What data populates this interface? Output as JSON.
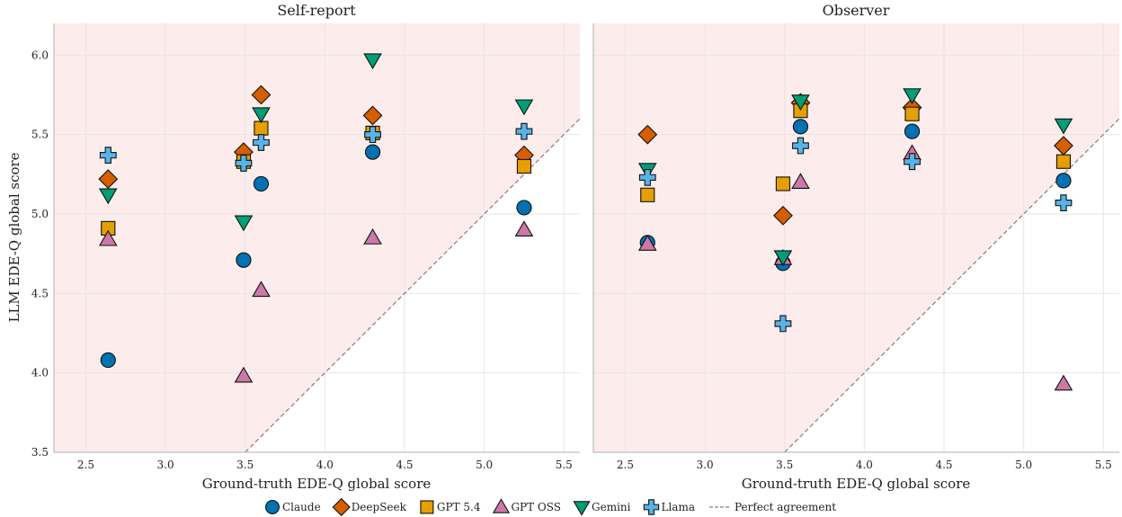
{
  "chart_data": [
    {
      "type": "scatter",
      "title": "Self-report",
      "xlabel": "Ground-truth EDE-Q global score",
      "ylabel": "LLM EDE-Q global score",
      "xlim": [
        2.3,
        5.6
      ],
      "ylim": [
        3.5,
        6.2
      ],
      "xticks": [
        "2.5",
        "3.0",
        "3.5",
        "4.0",
        "4.5",
        "5.0",
        "5.5"
      ],
      "yticks": [
        "3.5",
        "4.0",
        "4.5",
        "5.0",
        "5.5",
        "6.0"
      ],
      "grid": true,
      "shaded_region": "above perfect-agreement line",
      "series": [
        {
          "name": "Claude",
          "points": [
            [
              2.64,
              4.08
            ],
            [
              3.49,
              4.71
            ],
            [
              3.6,
              5.19
            ],
            [
              4.3,
              5.39
            ],
            [
              5.25,
              5.04
            ]
          ]
        },
        {
          "name": "DeepSeek",
          "points": [
            [
              2.64,
              5.22
            ],
            [
              3.49,
              5.39
            ],
            [
              3.6,
              5.75
            ],
            [
              4.3,
              5.62
            ],
            [
              5.25,
              5.37
            ]
          ]
        },
        {
          "name": "GPT 5.4",
          "points": [
            [
              2.64,
              4.91
            ],
            [
              3.49,
              5.33
            ],
            [
              3.6,
              5.54
            ],
            [
              4.3,
              5.51
            ],
            [
              5.25,
              5.3
            ]
          ]
        },
        {
          "name": "GPT OSS",
          "points": [
            [
              2.64,
              4.84
            ],
            [
              3.49,
              3.98
            ],
            [
              3.6,
              4.52
            ],
            [
              4.3,
              4.85
            ],
            [
              5.25,
              4.9
            ]
          ]
        },
        {
          "name": "Gemini",
          "points": [
            [
              2.64,
              5.12
            ],
            [
              3.49,
              4.95
            ],
            [
              3.6,
              5.63
            ],
            [
              4.3,
              5.97
            ],
            [
              5.25,
              5.68
            ]
          ]
        },
        {
          "name": "Llama",
          "points": [
            [
              2.64,
              5.37
            ],
            [
              3.49,
              5.32
            ],
            [
              3.6,
              5.45
            ],
            [
              4.3,
              5.5
            ],
            [
              5.25,
              5.52
            ]
          ]
        }
      ]
    },
    {
      "type": "scatter",
      "title": "Observer",
      "xlabel": "Ground-truth EDE-Q global score",
      "ylabel": "",
      "xlim": [
        2.3,
        5.6
      ],
      "ylim": [
        3.5,
        6.2
      ],
      "xticks": [
        "2.5",
        "3.0",
        "3.5",
        "4.0",
        "4.5",
        "5.0",
        "5.5"
      ],
      "yticks": [],
      "grid": true,
      "shaded_region": "above perfect-agreement line",
      "series": [
        {
          "name": "Claude",
          "points": [
            [
              2.64,
              4.82
            ],
            [
              3.49,
              4.69
            ],
            [
              3.6,
              5.55
            ],
            [
              4.3,
              5.52
            ],
            [
              5.25,
              5.21
            ]
          ]
        },
        {
          "name": "DeepSeek",
          "points": [
            [
              2.64,
              5.5
            ],
            [
              3.49,
              4.99
            ],
            [
              3.6,
              5.7
            ],
            [
              4.3,
              5.67
            ],
            [
              5.25,
              5.43
            ]
          ]
        },
        {
          "name": "GPT 5.4",
          "points": [
            [
              2.64,
              5.12
            ],
            [
              3.49,
              5.19
            ],
            [
              3.6,
              5.65
            ],
            [
              4.3,
              5.63
            ],
            [
              5.25,
              5.33
            ]
          ]
        },
        {
          "name": "GPT OSS",
          "points": [
            [
              2.64,
              4.81
            ],
            [
              3.49,
              4.72
            ],
            [
              3.6,
              5.2
            ],
            [
              4.3,
              5.38
            ],
            [
              5.25,
              3.93
            ]
          ]
        },
        {
          "name": "Gemini",
          "points": [
            [
              2.64,
              5.28
            ],
            [
              3.49,
              4.73
            ],
            [
              3.6,
              5.71
            ],
            [
              4.3,
              5.75
            ],
            [
              5.25,
              5.56
            ]
          ]
        },
        {
          "name": "Llama",
          "points": [
            [
              2.64,
              5.23
            ],
            [
              3.49,
              4.31
            ],
            [
              3.6,
              5.43
            ],
            [
              4.3,
              5.33
            ],
            [
              5.25,
              5.07
            ]
          ]
        }
      ]
    }
  ],
  "legend": {
    "placement": "bottom-center",
    "items": [
      {
        "label": "Claude",
        "marker": "circle",
        "color": "#0072B2"
      },
      {
        "label": "DeepSeek",
        "marker": "diamond",
        "color": "#D55E00"
      },
      {
        "label": "GPT 5.4",
        "marker": "square",
        "color": "#E69F00"
      },
      {
        "label": "GPT OSS",
        "marker": "triangle-up",
        "color": "#CC79A7"
      },
      {
        "label": "Gemini",
        "marker": "triangle-down",
        "color": "#009E73"
      },
      {
        "label": "Llama",
        "marker": "plus",
        "color": "#56B4E9"
      },
      {
        "label": "Perfect agreement",
        "marker": "dashed-line",
        "color": "#8a7a7e"
      }
    ]
  },
  "colors": {
    "shade": "#fdecec",
    "grid": "#e6e6e6",
    "spine": "#bfbfbf",
    "reference_line": "#8a7a7e",
    "marker_edge": "#111111"
  }
}
